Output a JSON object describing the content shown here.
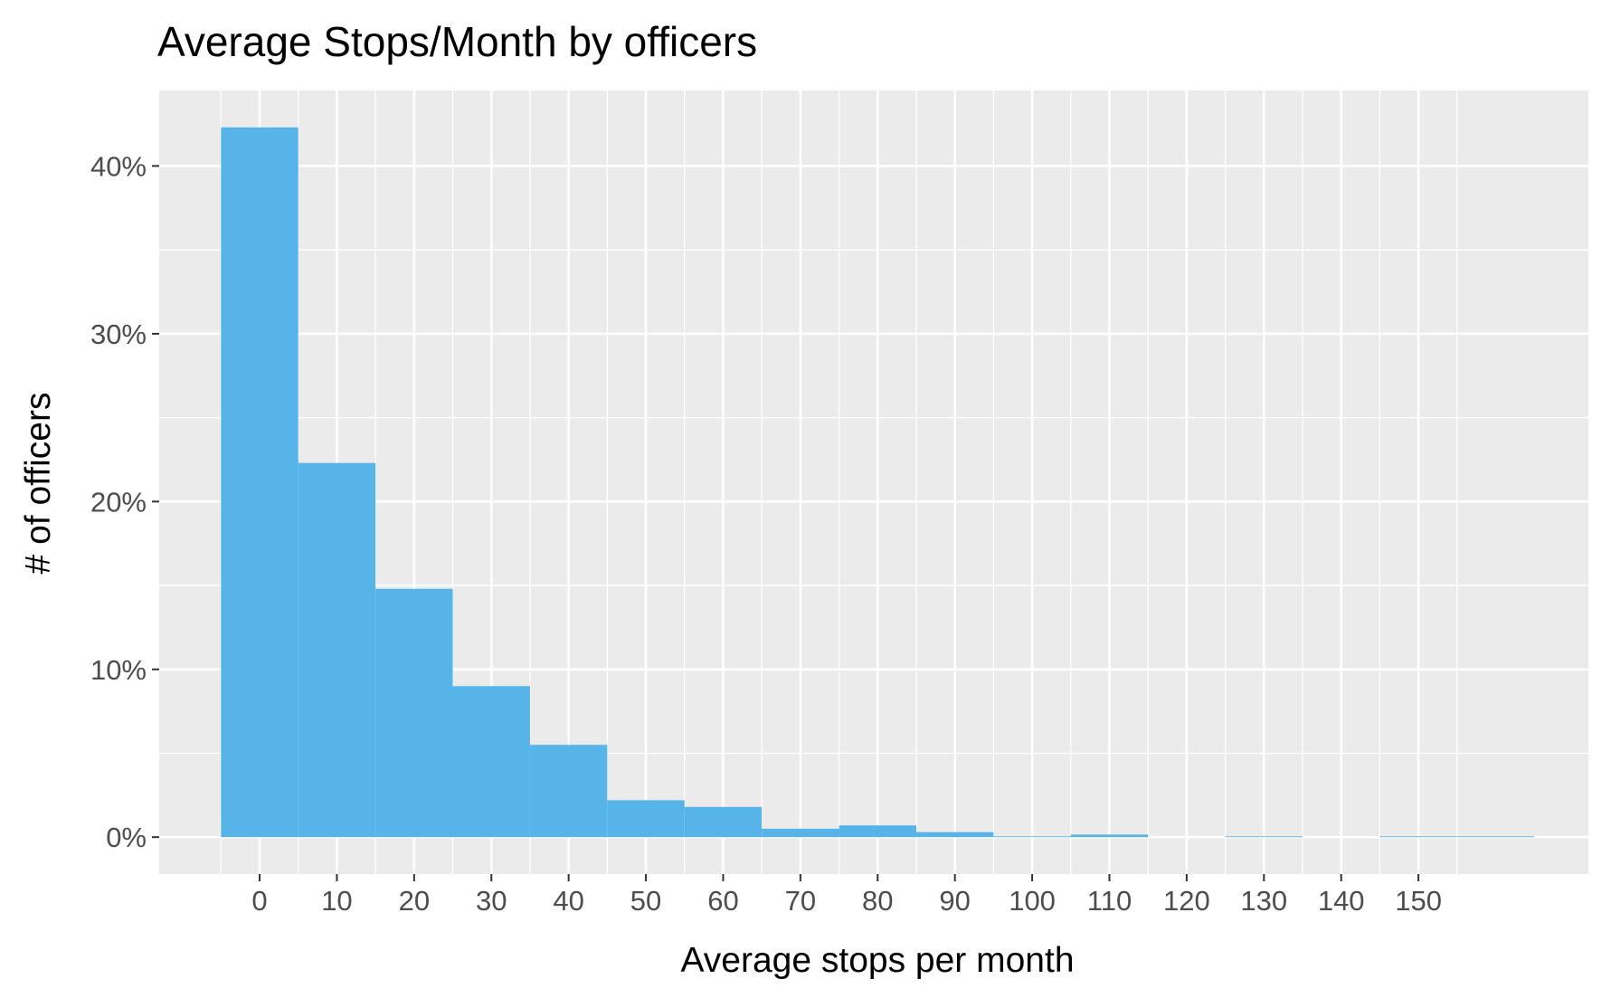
{
  "chart_data": {
    "type": "bar",
    "title": "Average Stops/Month by officers",
    "xlabel": "Average stops per month",
    "ylabel": "# of officers",
    "bin_width": 10,
    "bins": [
      {
        "center": 0,
        "value": 0.423
      },
      {
        "center": 10,
        "value": 0.223
      },
      {
        "center": 20,
        "value": 0.148
      },
      {
        "center": 30,
        "value": 0.09
      },
      {
        "center": 40,
        "value": 0.055
      },
      {
        "center": 50,
        "value": 0.022
      },
      {
        "center": 60,
        "value": 0.018
      },
      {
        "center": 70,
        "value": 0.005
      },
      {
        "center": 80,
        "value": 0.007
      },
      {
        "center": 90,
        "value": 0.003
      },
      {
        "center": 100,
        "value": 0.0005
      },
      {
        "center": 110,
        "value": 0.0015
      },
      {
        "center": 120,
        "value": 0
      },
      {
        "center": 130,
        "value": 0.0005
      },
      {
        "center": 140,
        "value": 0
      },
      {
        "center": 150,
        "value": 0.0005
      },
      {
        "center": 160,
        "value": 0.0005
      }
    ],
    "xlim": [
      -13,
      172
    ],
    "ylim": [
      -0.022,
      0.445
    ],
    "x_ticks": [
      0,
      10,
      20,
      30,
      40,
      50,
      60,
      70,
      80,
      90,
      100,
      110,
      120,
      130,
      140,
      150
    ],
    "x_tick_labels": [
      "0",
      "10",
      "20",
      "30",
      "40",
      "50",
      "60",
      "70",
      "80",
      "90",
      "100",
      "110",
      "120",
      "130",
      "140",
      "150"
    ],
    "y_ticks": [
      0,
      0.1,
      0.2,
      0.3,
      0.4
    ],
    "y_tick_labels": [
      "0%",
      "10%",
      "20%",
      "30%",
      "40%"
    ],
    "grid": true,
    "legend": "none",
    "colors": {
      "bar_fill": "#56b4e9",
      "panel_background": "#ebebeb",
      "grid_line": "#ffffff",
      "tick_label": "#4d4d4d",
      "tick_mark": "#333333",
      "text": "#000000"
    }
  }
}
